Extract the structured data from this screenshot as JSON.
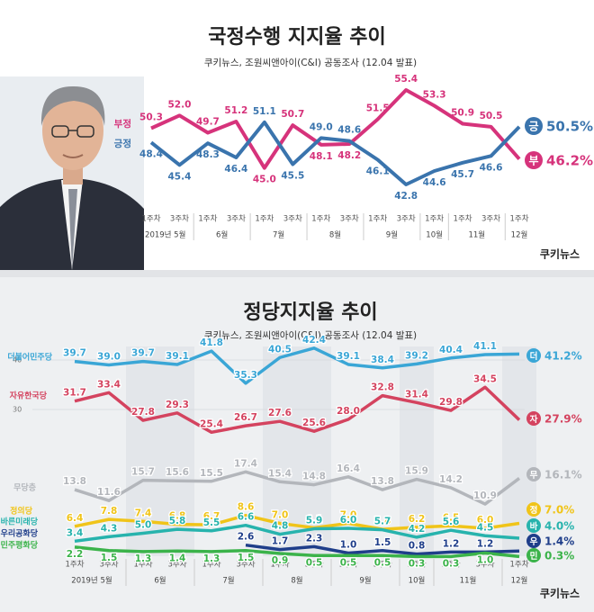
{
  "logo": "쿠키뉴스",
  "chart_data": [
    {
      "type": "line",
      "title": "국정수행 지지율 추이",
      "subtitle": "쿠키뉴스, 조원씨앤아이(C&I) 공동조사 (12.04 발표)",
      "categories": [
        "1주차",
        "3주차",
        "1주차",
        "3주차",
        "1주차",
        "3주차",
        "1주차",
        "3주차",
        "1주차",
        "3주차",
        "1주차",
        "1주차",
        "3주차",
        "1주차"
      ],
      "months": [
        "2019년 5월",
        null,
        "6월",
        null,
        "7월",
        null,
        "8월",
        null,
        "9월",
        null,
        "10월",
        "11월",
        null,
        "12월"
      ],
      "series": [
        {
          "name": "부정",
          "color": "#d6337b",
          "badge": "부",
          "end_label": "46.2%",
          "values": [
            50.3,
            52.0,
            49.7,
            51.2,
            45.0,
            50.7,
            48.1,
            48.2,
            51.5,
            55.4,
            53.3,
            50.9,
            50.5,
            46.2
          ],
          "value_labels": [
            "50.3",
            "52.0",
            "49.7",
            "51.2",
            "45.0",
            "50.7",
            "48.1",
            "48.2",
            "51.5",
            "55.4",
            "53.3",
            "50.9",
            "50.5",
            "46.2"
          ]
        },
        {
          "name": "긍정",
          "color": "#3a74ad",
          "badge": "긍",
          "end_label": "50.5%",
          "values": [
            48.4,
            45.4,
            48.3,
            46.4,
            51.1,
            45.5,
            49.0,
            48.6,
            46.1,
            42.8,
            44.6,
            45.7,
            46.6,
            50.5
          ],
          "value_labels": [
            "48.4",
            "45.4",
            "48.3",
            "46.4",
            "51.1",
            "45.5",
            "49.0",
            "48.6",
            "46.1",
            "42.8",
            "44.6",
            "45.7",
            "46.6",
            "50.5"
          ]
        }
      ]
    },
    {
      "type": "line",
      "title": "정당지지율 추이",
      "subtitle": "쿠키뉴스, 조원씨앤아이(C&I) 공동조사 (12.04 발표)",
      "categories": [
        "1주차",
        "3주차",
        "1주차",
        "3주차",
        "1주차",
        "3주차",
        "1주차",
        "3주차",
        "1주차",
        "3주차",
        "1주차",
        "1주차",
        "3주차",
        "1주차"
      ],
      "months": [
        "2019년 5월",
        null,
        "6월",
        null,
        "7월",
        null,
        "8월",
        null,
        "9월",
        null,
        "10월",
        "11월",
        null,
        "12월"
      ],
      "ylim": [
        0,
        43
      ],
      "yticks": [
        30,
        40
      ],
      "series": [
        {
          "name": "더불어민주당",
          "color": "#3aa6d6",
          "badge": "더",
          "end_label": "41.2%",
          "values": [
            39.7,
            39.0,
            39.7,
            39.1,
            41.8,
            35.3,
            40.5,
            42.4,
            39.1,
            38.4,
            39.2,
            40.4,
            41.1,
            41.2
          ],
          "value_labels": [
            "39.7",
            "39.0",
            "39.7",
            "39.1",
            "41.8",
            "35.3",
            "40.5",
            "42.4",
            "39.1",
            "38.4",
            "39.2",
            "40.4",
            "41.1",
            "41.2"
          ]
        },
        {
          "name": "자유한국당",
          "color": "#d4435f",
          "badge": "자",
          "end_label": "27.9%",
          "values": [
            31.7,
            33.4,
            27.8,
            29.3,
            25.4,
            26.7,
            27.6,
            25.6,
            28.0,
            32.8,
            31.4,
            29.8,
            34.5,
            27.9
          ],
          "value_labels": [
            "31.7",
            "33.4",
            "27.8",
            "29.3",
            "25.4",
            "26.7",
            "27.6",
            "25.6",
            "28.0",
            "32.8",
            "31.4",
            "29.8",
            "34.5",
            "27.9"
          ]
        },
        {
          "name": "무당층",
          "color": "#b3b6bb",
          "badge": "무",
          "end_label": "16.1%",
          "values": [
            13.8,
            11.6,
            15.7,
            15.6,
            15.5,
            17.4,
            15.4,
            14.8,
            16.4,
            13.8,
            15.9,
            14.2,
            10.9,
            16.1
          ],
          "value_labels": [
            "13.8",
            "11.6",
            "15.7",
            "15.6",
            "15.5",
            "17.4",
            "15.4",
            "14.8",
            "16.4",
            "13.8",
            "15.9",
            "14.2",
            "10.9",
            "16.1"
          ]
        },
        {
          "name": "정의당",
          "color": "#f0c419",
          "badge": "정",
          "end_label": "7.0%",
          "values": [
            6.4,
            7.8,
            7.4,
            6.8,
            6.7,
            8.6,
            7.0,
            6.1,
            7.0,
            5.8,
            6.2,
            6.5,
            6.0,
            7.0
          ],
          "value_labels": [
            "6.4",
            "7.8",
            "7.4",
            "6.8",
            "6.7",
            "8.6",
            "7.0",
            "6.1",
            "7.0",
            "5.8",
            "6.2",
            "6.5",
            "6.0",
            "7.0"
          ]
        },
        {
          "name": "바른미래당",
          "color": "#27b3ad",
          "badge": "바",
          "end_label": "4.0%",
          "values": [
            3.4,
            4.3,
            5.0,
            5.8,
            5.5,
            6.6,
            4.8,
            5.9,
            6.0,
            5.7,
            4.2,
            5.6,
            4.5,
            4.0
          ],
          "value_labels": [
            "3.4",
            "4.3",
            "5.0",
            "5.8",
            "5.5",
            "6.6",
            "4.8",
            "5.9",
            "6.0",
            "5.7",
            "4.2",
            "5.6",
            "4.5",
            "4.0"
          ]
        },
        {
          "name": "우리공화당",
          "color": "#1f3e8a",
          "badge": "우",
          "end_label": "1.4%",
          "values": [
            null,
            null,
            null,
            null,
            null,
            2.6,
            1.7,
            2.3,
            1.0,
            1.5,
            0.8,
            1.2,
            1.2,
            1.4
          ],
          "value_labels": [
            null,
            null,
            null,
            null,
            null,
            "2.6",
            "1.7",
            "2.3",
            "1.0",
            "1.5",
            "0.8",
            "1.2",
            "1.2",
            "1.4"
          ]
        },
        {
          "name": "민주평화당",
          "color": "#3bb34a",
          "badge": "민",
          "end_label": "0.3%",
          "values": [
            2.2,
            1.5,
            1.3,
            1.4,
            1.3,
            1.5,
            0.9,
            0.5,
            0.5,
            0.5,
            0.3,
            0.3,
            1.0,
            0.3
          ],
          "value_labels": [
            "2.2",
            "1.5",
            "1.3",
            "1.4",
            "1.3",
            "1.5",
            "0.9",
            "0.5",
            "0.5",
            "0.5",
            "0.3",
            "0.3",
            "1.0",
            "0.3"
          ]
        }
      ]
    }
  ]
}
